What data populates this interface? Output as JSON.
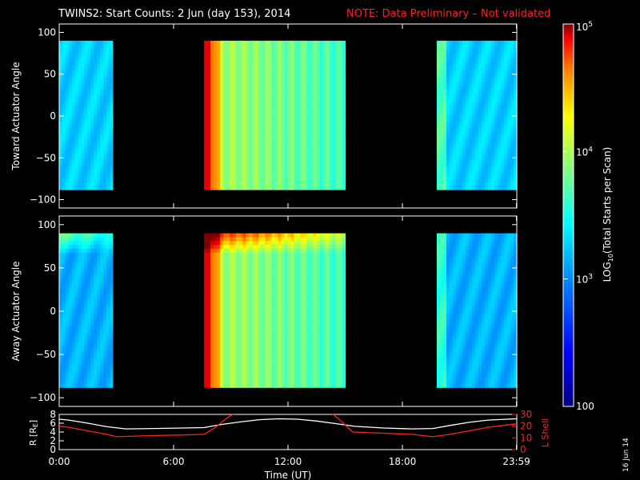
{
  "header": {
    "title": "TWINS2: Start Counts:  2 Jun (day 153), 2014",
    "note": "NOTE: Data Preliminary – Not validated"
  },
  "footer": {
    "date_stamp": "16 Jun 14"
  },
  "colors": {
    "background": "#000000",
    "foreground": "#ffffff",
    "note": "#ff2020",
    "r_line": "#ffffff",
    "lshell_line": "#ff2020",
    "colormap": [
      "#000080",
      "#0000ff",
      "#0080ff",
      "#00ffff",
      "#80ff80",
      "#ffff00",
      "#ff8000",
      "#ff0000",
      "#800000"
    ]
  },
  "chart_data": [
    {
      "id": "toward",
      "type": "heatmap",
      "ylabel": "Toward Actuator Angle",
      "x_domain_hours": [
        0,
        24
      ],
      "ylim": [
        -110,
        110
      ],
      "yticks": [
        "100",
        "50",
        "0",
        "−50",
        "−100"
      ],
      "ytick_values": [
        100,
        50,
        0,
        -50,
        -100
      ],
      "data_angle_range": [
        -88,
        90
      ],
      "segments": [
        {
          "start_hour": 0.0,
          "end_hour": 2.8,
          "level": 0.33,
          "profile": "low"
        },
        {
          "start_hour": 7.6,
          "end_hour": 15.0,
          "level": 0.62,
          "profile": "high"
        },
        {
          "start_hour": 19.8,
          "end_hour": 24.0,
          "level": 0.33,
          "profile": "low"
        }
      ]
    },
    {
      "id": "away",
      "type": "heatmap",
      "ylabel": "Away Actuator Angle",
      "x_domain_hours": [
        0,
        24
      ],
      "ylim": [
        -110,
        110
      ],
      "yticks": [
        "100",
        "50",
        "0",
        "−50",
        "−100"
      ],
      "ytick_values": [
        100,
        50,
        0,
        -50,
        -100
      ],
      "data_angle_range": [
        -88,
        90
      ],
      "segments": [
        {
          "start_hour": 0.0,
          "end_hour": 2.8,
          "level": 0.3,
          "profile": "low-hot-top"
        },
        {
          "start_hour": 7.6,
          "end_hour": 15.0,
          "level": 0.6,
          "profile": "high-hot-top"
        },
        {
          "start_hour": 19.8,
          "end_hour": 24.0,
          "level": 0.3,
          "profile": "low"
        }
      ]
    },
    {
      "id": "ephemeris",
      "type": "line",
      "xlabel": "Time (UT)",
      "x_domain_hours": [
        0,
        24
      ],
      "xticks": [
        "0:00",
        "6:00",
        "12:00",
        "18:00",
        "23:59"
      ],
      "xtick_values": [
        0,
        6,
        12,
        18,
        23.98
      ],
      "ylabel_left": "R [R",
      "ylabel_left_sub": "E",
      "ylabel_left_close": "]",
      "ylim_left": [
        0,
        8
      ],
      "yticks_left": [
        "8",
        "6",
        "4",
        "2",
        "0"
      ],
      "ytick_values_left": [
        8,
        6,
        4,
        2,
        0
      ],
      "ylabel_right": "L Shell",
      "ylim_right": [
        0,
        30
      ],
      "yticks_right": [
        "30",
        "20",
        "10",
        "0"
      ],
      "ytick_values_right": [
        30,
        20,
        10,
        0
      ],
      "series": [
        {
          "axis": "left",
          "x": [
            0,
            0.5,
            1.5,
            2.5,
            3.5,
            5,
            6.5,
            7.6,
            8.5,
            9.5,
            10.5,
            11.5,
            12.5,
            13.5,
            14.5,
            15.5,
            17,
            18.5,
            19.6,
            20.5,
            21.5,
            22.5,
            23.5,
            24
          ],
          "y": [
            6.9,
            6.7,
            6.0,
            5.2,
            4.7,
            4.8,
            4.9,
            5.0,
            5.7,
            6.3,
            6.8,
            7.0,
            6.9,
            6.5,
            5.9,
            5.3,
            4.9,
            4.7,
            4.8,
            5.5,
            6.2,
            6.7,
            6.9,
            7.0
          ]
        },
        {
          "axis": "right",
          "x": [
            0,
            0.5,
            1.5,
            2.5,
            3.0,
            5,
            6.5,
            7.6,
            8.2,
            8.8,
            9.2,
            14.3,
            14.8,
            15.4,
            17,
            18.5,
            19.6,
            20.5,
            21.5,
            22.5,
            23.5,
            24
          ],
          "y": [
            20,
            19,
            16,
            13,
            11,
            12,
            12.5,
            13,
            19,
            27,
            31,
            31,
            24,
            15,
            14,
            13,
            11,
            13,
            16,
            19,
            21,
            22
          ]
        }
      ]
    }
  ],
  "colorbar": {
    "label_main": "LOG",
    "label_sub": "10",
    "label_rest": "(Total Starts per Scan)",
    "ticks": [
      {
        "base": "10",
        "exp": "5",
        "value": 100000
      },
      {
        "base": "10",
        "exp": "4",
        "value": 10000
      },
      {
        "base": "10",
        "exp": "3",
        "value": 1000
      },
      {
        "base": "100",
        "exp": "",
        "value": 100
      }
    ],
    "range": [
      100,
      100000
    ]
  }
}
